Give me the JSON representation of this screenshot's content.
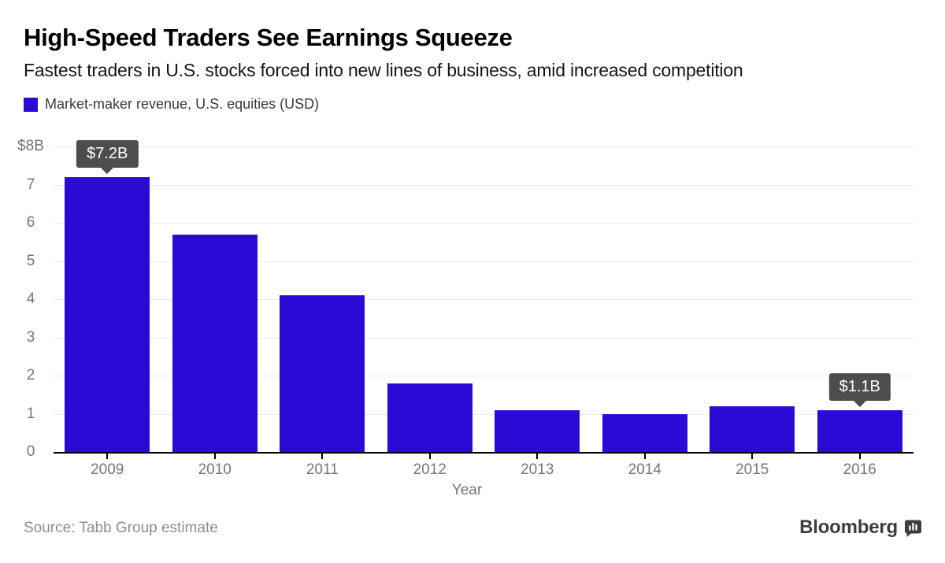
{
  "header": {
    "title": "High-Speed Traders See Earnings Squeeze",
    "subtitle": "Fastest traders in U.S. stocks forced into new lines of business, amid increased competition"
  },
  "legend": {
    "label": "Market-maker revenue, U.S. equities (USD)"
  },
  "chart_data": {
    "type": "bar",
    "title": "Market-maker revenue, U.S. equities (USD)",
    "categories": [
      "2009",
      "2010",
      "2011",
      "2012",
      "2013",
      "2014",
      "2015",
      "2016"
    ],
    "values": [
      7.2,
      5.7,
      4.1,
      1.8,
      1.1,
      1.0,
      1.2,
      1.1
    ],
    "xlabel": "Year",
    "ylabel": "",
    "ylim": [
      0,
      8
    ],
    "yticks": [
      {
        "value": 8,
        "label": "$8B"
      },
      {
        "value": 7,
        "label": "7"
      },
      {
        "value": 6,
        "label": "6"
      },
      {
        "value": 5,
        "label": "5"
      },
      {
        "value": 4,
        "label": "4"
      },
      {
        "value": 3,
        "label": "3"
      },
      {
        "value": 2,
        "label": "2"
      },
      {
        "value": 1,
        "label": "1"
      },
      {
        "value": 0,
        "label": "0"
      }
    ],
    "grid": true,
    "legend_position": "top-left",
    "annotations": [
      {
        "category": "2009",
        "text": "$7.2B"
      },
      {
        "category": "2016",
        "text": "$1.1B"
      }
    ]
  },
  "footer": {
    "source": "Source: Tabb Group estimate",
    "brand": "Bloomberg"
  },
  "colors": {
    "bar": "#2a0ad5",
    "tooltip_bg": "#4d4d4d",
    "grid_line": "#e9e9e9",
    "axis_text": "#757575",
    "source_text": "#8e8e8e",
    "brand_text": "#3d3d3d"
  }
}
